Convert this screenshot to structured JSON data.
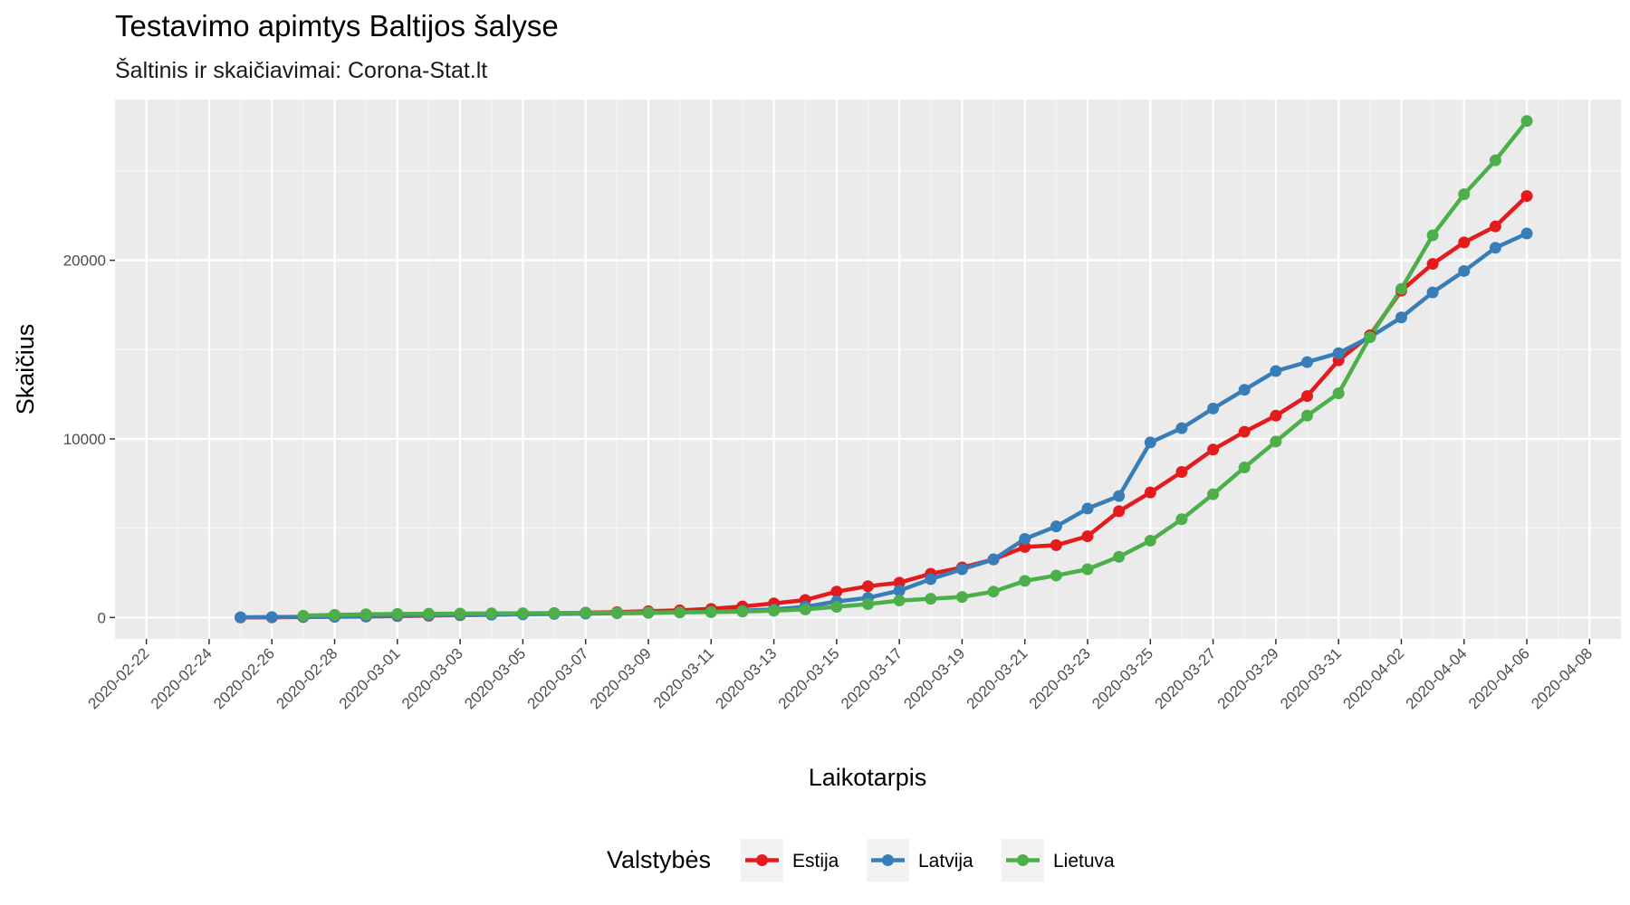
{
  "chart_data": {
    "type": "line",
    "title": "Testavimo apimtys Baltijos šalyse",
    "subtitle": "Šaltinis ir skaičiavimai: Corona-Stat.lt",
    "xlabel": "Laikotarpis",
    "ylabel": "Skaičius",
    "legend_title": "Valstybės",
    "legend_position": "bottom",
    "grid": true,
    "xlim": [
      "2020-02-21",
      "2020-04-09"
    ],
    "ylim": [
      -1200,
      29000
    ],
    "x_ticks": [
      "2020-02-22",
      "2020-02-24",
      "2020-02-26",
      "2020-02-28",
      "2020-03-01",
      "2020-03-03",
      "2020-03-05",
      "2020-03-07",
      "2020-03-09",
      "2020-03-11",
      "2020-03-13",
      "2020-03-15",
      "2020-03-17",
      "2020-03-19",
      "2020-03-21",
      "2020-03-23",
      "2020-03-25",
      "2020-03-27",
      "2020-03-29",
      "2020-03-31",
      "2020-04-02",
      "2020-04-04",
      "2020-04-06",
      "2020-04-08"
    ],
    "y_ticks": [
      0,
      10000,
      20000
    ],
    "y_tick_labels": [
      "0",
      "10000",
      "20000"
    ],
    "series": [
      {
        "name": "Estija",
        "color": "#e41a1c",
        "x": [
          "2020-02-25",
          "2020-02-26",
          "2020-02-27",
          "2020-02-28",
          "2020-02-29",
          "2020-03-01",
          "2020-03-02",
          "2020-03-03",
          "2020-03-04",
          "2020-03-05",
          "2020-03-06",
          "2020-03-07",
          "2020-03-08",
          "2020-03-09",
          "2020-03-10",
          "2020-03-11",
          "2020-03-12",
          "2020-03-13",
          "2020-03-14",
          "2020-03-15",
          "2020-03-16",
          "2020-03-17",
          "2020-03-18",
          "2020-03-19",
          "2020-03-20",
          "2020-03-21",
          "2020-03-22",
          "2020-03-23",
          "2020-03-24",
          "2020-03-25",
          "2020-03-26",
          "2020-03-27",
          "2020-03-28",
          "2020-03-29",
          "2020-03-30",
          "2020-03-31",
          "2020-04-01",
          "2020-04-02",
          "2020-04-03",
          "2020-04-04",
          "2020-04-05",
          "2020-04-06"
        ],
        "y": [
          5,
          10,
          25,
          40,
          55,
          80,
          100,
          130,
          160,
          190,
          230,
          270,
          300,
          350,
          400,
          480,
          620,
          790,
          980,
          1450,
          1750,
          1950,
          2450,
          2800,
          3250,
          3950,
          4050,
          4550,
          5950,
          7000,
          8150,
          9400,
          10400,
          11300,
          12400,
          14400,
          15800,
          18300,
          19800,
          21000,
          21900,
          23600
        ]
      },
      {
        "name": "Latvija",
        "color": "#377eb8",
        "x": [
          "2020-02-25",
          "2020-02-26",
          "2020-02-27",
          "2020-02-28",
          "2020-02-29",
          "2020-03-01",
          "2020-03-02",
          "2020-03-03",
          "2020-03-04",
          "2020-03-05",
          "2020-03-06",
          "2020-03-07",
          "2020-03-08",
          "2020-03-09",
          "2020-03-10",
          "2020-03-11",
          "2020-03-12",
          "2020-03-13",
          "2020-03-14",
          "2020-03-15",
          "2020-03-16",
          "2020-03-17",
          "2020-03-18",
          "2020-03-19",
          "2020-03-20",
          "2020-03-21",
          "2020-03-22",
          "2020-03-23",
          "2020-03-24",
          "2020-03-25",
          "2020-03-26",
          "2020-03-27",
          "2020-03-28",
          "2020-03-29",
          "2020-03-30",
          "2020-03-31",
          "2020-04-01",
          "2020-04-02",
          "2020-04-03",
          "2020-04-04",
          "2020-04-05",
          "2020-04-06"
        ],
        "y": [
          10,
          20,
          40,
          60,
          80,
          100,
          120,
          140,
          160,
          180,
          200,
          220,
          240,
          260,
          290,
          320,
          380,
          450,
          600,
          900,
          1100,
          1500,
          2150,
          2700,
          3250,
          4400,
          5100,
          6100,
          6800,
          9800,
          10600,
          11700,
          12750,
          13800,
          14300,
          14800,
          15700,
          16800,
          18200,
          19400,
          20700,
          21500
        ]
      },
      {
        "name": "Lietuva",
        "color": "#4daf4a",
        "x": [
          "2020-02-27",
          "2020-02-28",
          "2020-02-29",
          "2020-03-01",
          "2020-03-02",
          "2020-03-03",
          "2020-03-04",
          "2020-03-05",
          "2020-03-06",
          "2020-03-07",
          "2020-03-08",
          "2020-03-09",
          "2020-03-10",
          "2020-03-11",
          "2020-03-12",
          "2020-03-13",
          "2020-03-14",
          "2020-03-15",
          "2020-03-16",
          "2020-03-17",
          "2020-03-18",
          "2020-03-19",
          "2020-03-20",
          "2020-03-21",
          "2020-03-22",
          "2020-03-23",
          "2020-03-24",
          "2020-03-25",
          "2020-03-26",
          "2020-03-27",
          "2020-03-28",
          "2020-03-29",
          "2020-03-30",
          "2020-03-31",
          "2020-04-01",
          "2020-04-02",
          "2020-04-03",
          "2020-04-04",
          "2020-04-05",
          "2020-04-06"
        ],
        "y": [
          100,
          150,
          180,
          200,
          210,
          220,
          230,
          240,
          250,
          260,
          270,
          280,
          290,
          300,
          330,
          380,
          450,
          600,
          750,
          950,
          1050,
          1150,
          1450,
          2050,
          2350,
          2700,
          3400,
          4300,
          5500,
          6900,
          8400,
          9850,
          11300,
          12550,
          15700,
          18400,
          21400,
          23700,
          25600,
          27800
        ]
      }
    ]
  }
}
